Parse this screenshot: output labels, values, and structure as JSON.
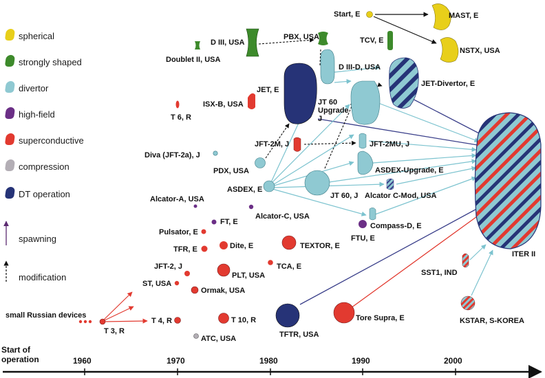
{
  "legend": [
    {
      "label": "spherical",
      "color": "#e8cf1a"
    },
    {
      "label": "strongly shaped",
      "color": "#3d8a2b"
    },
    {
      "label": "divertor",
      "color": "#8fc9d2"
    },
    {
      "label": "high-field",
      "color": "#6b2f86"
    },
    {
      "label": "superconductive",
      "color": "#e23a30"
    },
    {
      "label": "compression",
      "color": "#b3aeb5"
    },
    {
      "label": "DT operation",
      "color": "#263377"
    }
  ],
  "legend_arrows": {
    "spawning": "spawning",
    "modification": "modification"
  },
  "axis": {
    "label_line1": "Start of",
    "label_line2": "operation",
    "years": [
      "1960",
      "1970",
      "1980",
      "1990",
      "2000"
    ]
  },
  "devices": {
    "small_russian": "small Russian devices",
    "t3": "T 3, R",
    "t4": "T 4, R",
    "st": "ST, USA",
    "jft2": "JFT-2, J",
    "ormak": "Ormak, USA",
    "tfr": "TFR, E",
    "pulsator": "Pulsator, E",
    "ft": "FT, E",
    "alcator_a": "Alcator-A, USA",
    "atc": "ATC, USA",
    "t10": "T 10, R",
    "plt": "PLT, USA",
    "dite": "Dite, E",
    "alcator_c": "Alcator-C, USA",
    "tca": "TCA, E",
    "textor": "TEXTOR, E",
    "tftr": "TFTR, USA",
    "tore_supra": "Tore Supra, E",
    "asdex": "ASDEX, E",
    "pdx": "PDX, USA",
    "diva": "Diva (JFT-2a), J",
    "t6": "T 6, R",
    "isxb": "ISX-B, USA",
    "doublet2": "Doublet II, USA",
    "d3": "D III, USA",
    "jet": "JET, E",
    "jft2m": "JFT-2M, J",
    "pbx": "PBX, USA",
    "d3d": "D III-D, USA",
    "jt60u_1": "JT 60",
    "jt60u_2": "Upgrade",
    "jt60u_3": "J",
    "jt60": "JT 60, J",
    "jft2mu": "JFT-2MU, J",
    "asdex_u": "ASDEX-Upgrade, E",
    "alcator_cmod": "Alcator C-Mod, USA",
    "compass": "Compass-D, E",
    "ftu": "FTU, E",
    "start": "Start, E",
    "tcv": "TCV, E",
    "mast": "MAST, E",
    "nstx": "NSTX, USA",
    "jet_div": "JET-Divertor, E",
    "sst1": "SST1, IND",
    "kstar": "KSTAR, S-KOREA",
    "iter": "ITER II"
  }
}
